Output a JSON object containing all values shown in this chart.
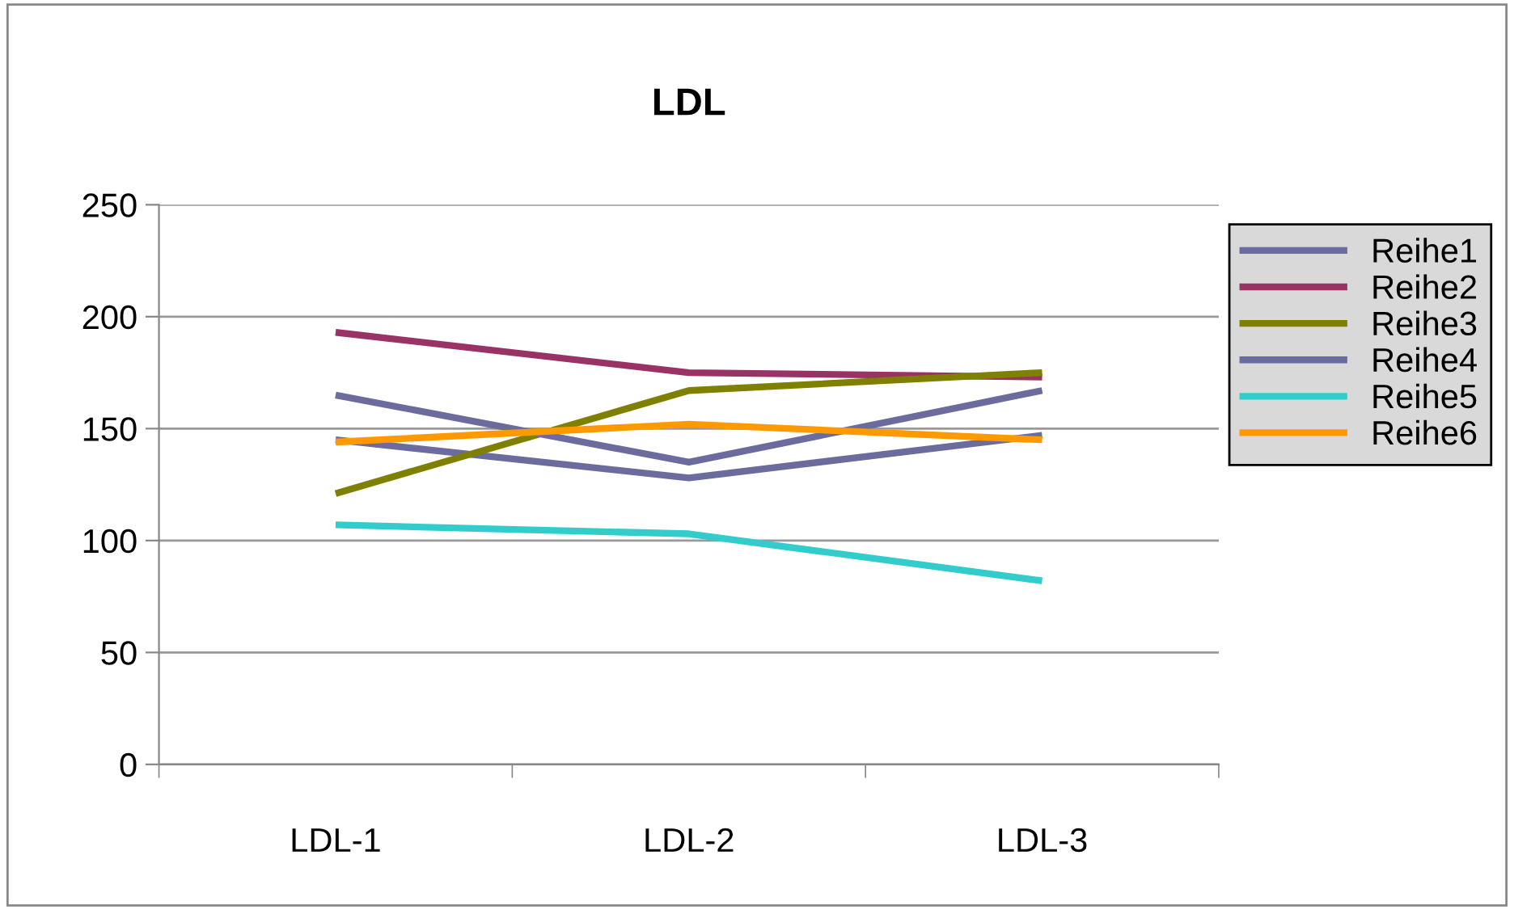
{
  "chart_data": {
    "type": "line",
    "title": "LDL",
    "categories": [
      "LDL-1",
      "LDL-2",
      "LDL-3"
    ],
    "series": [
      {
        "name": "Reihe1",
        "color": "#6b6b9e",
        "values": [
          145,
          128,
          147
        ]
      },
      {
        "name": "Reihe2",
        "color": "#993366",
        "values": [
          193,
          175,
          173
        ]
      },
      {
        "name": "Reihe3",
        "color": "#808000",
        "values": [
          121,
          167,
          175
        ]
      },
      {
        "name": "Reihe4",
        "color": "#6b6b9e",
        "values": [
          165,
          135,
          167
        ]
      },
      {
        "name": "Reihe5",
        "color": "#33cccc",
        "values": [
          107,
          103,
          82
        ]
      },
      {
        "name": "Reihe6",
        "color": "#ff9900",
        "values": [
          144,
          152,
          145
        ]
      }
    ],
    "ylim": [
      0,
      250
    ],
    "yticks": [
      0,
      50,
      100,
      150,
      200,
      250
    ],
    "grid": "y",
    "legend": "right",
    "marker": "none",
    "line_style": "solid"
  }
}
